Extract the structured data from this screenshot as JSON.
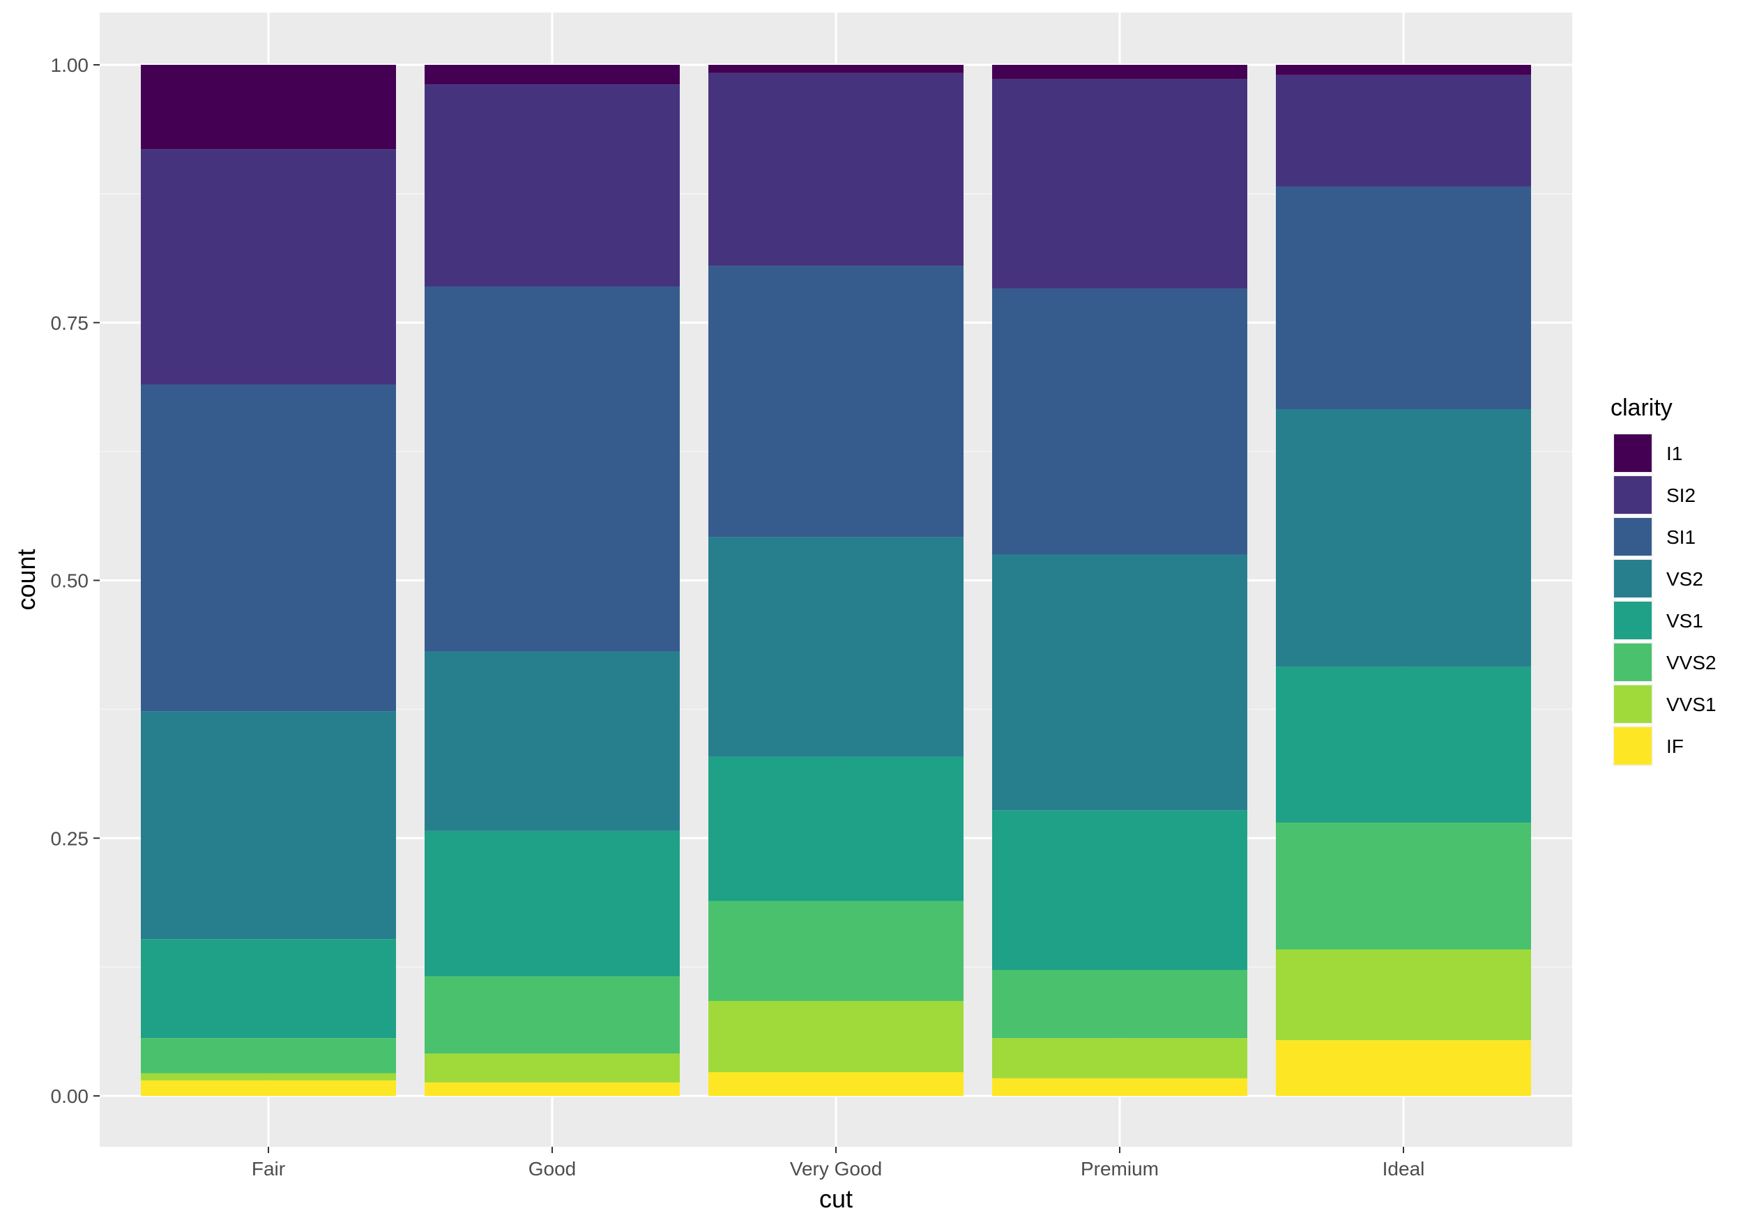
{
  "chart_data": {
    "type": "bar",
    "stacked": true,
    "position": "fill",
    "xlabel": "cut",
    "ylabel": "count",
    "categories": [
      "Fair",
      "Good",
      "Very Good",
      "Premium",
      "Ideal"
    ],
    "ylim": [
      0,
      1
    ],
    "y_ticks": [
      0,
      0.25,
      0.5,
      0.75,
      1
    ],
    "y_tick_labels": [
      "0.00",
      "0.25",
      "0.50",
      "0.75",
      "1.00"
    ],
    "grid": true,
    "legend": {
      "title": "clarity",
      "placement": "right"
    },
    "series": [
      {
        "name": "I1",
        "color": "#440154",
        "values": [
          0.082,
          0.019,
          0.008,
          0.014,
          0.01
        ]
      },
      {
        "name": "SI2",
        "color": "#46337E",
        "values": [
          0.228,
          0.196,
          0.187,
          0.203,
          0.108
        ]
      },
      {
        "name": "SI1",
        "color": "#365C8D",
        "values": [
          0.317,
          0.354,
          0.263,
          0.258,
          0.216
        ]
      },
      {
        "name": "VS2",
        "color": "#277F8E",
        "values": [
          0.221,
          0.174,
          0.213,
          0.248,
          0.25
        ]
      },
      {
        "name": "VS1",
        "color": "#1FA187",
        "values": [
          0.096,
          0.141,
          0.14,
          0.155,
          0.151
        ]
      },
      {
        "name": "VVS2",
        "color": "#4AC16D",
        "values": [
          0.034,
          0.075,
          0.097,
          0.066,
          0.123
        ]
      },
      {
        "name": "VVS1",
        "color": "#9FDA3A",
        "values": [
          0.007,
          0.028,
          0.069,
          0.039,
          0.088
        ]
      },
      {
        "name": "IF",
        "color": "#FDE725",
        "values": [
          0.015,
          0.013,
          0.023,
          0.017,
          0.054
        ]
      }
    ]
  }
}
